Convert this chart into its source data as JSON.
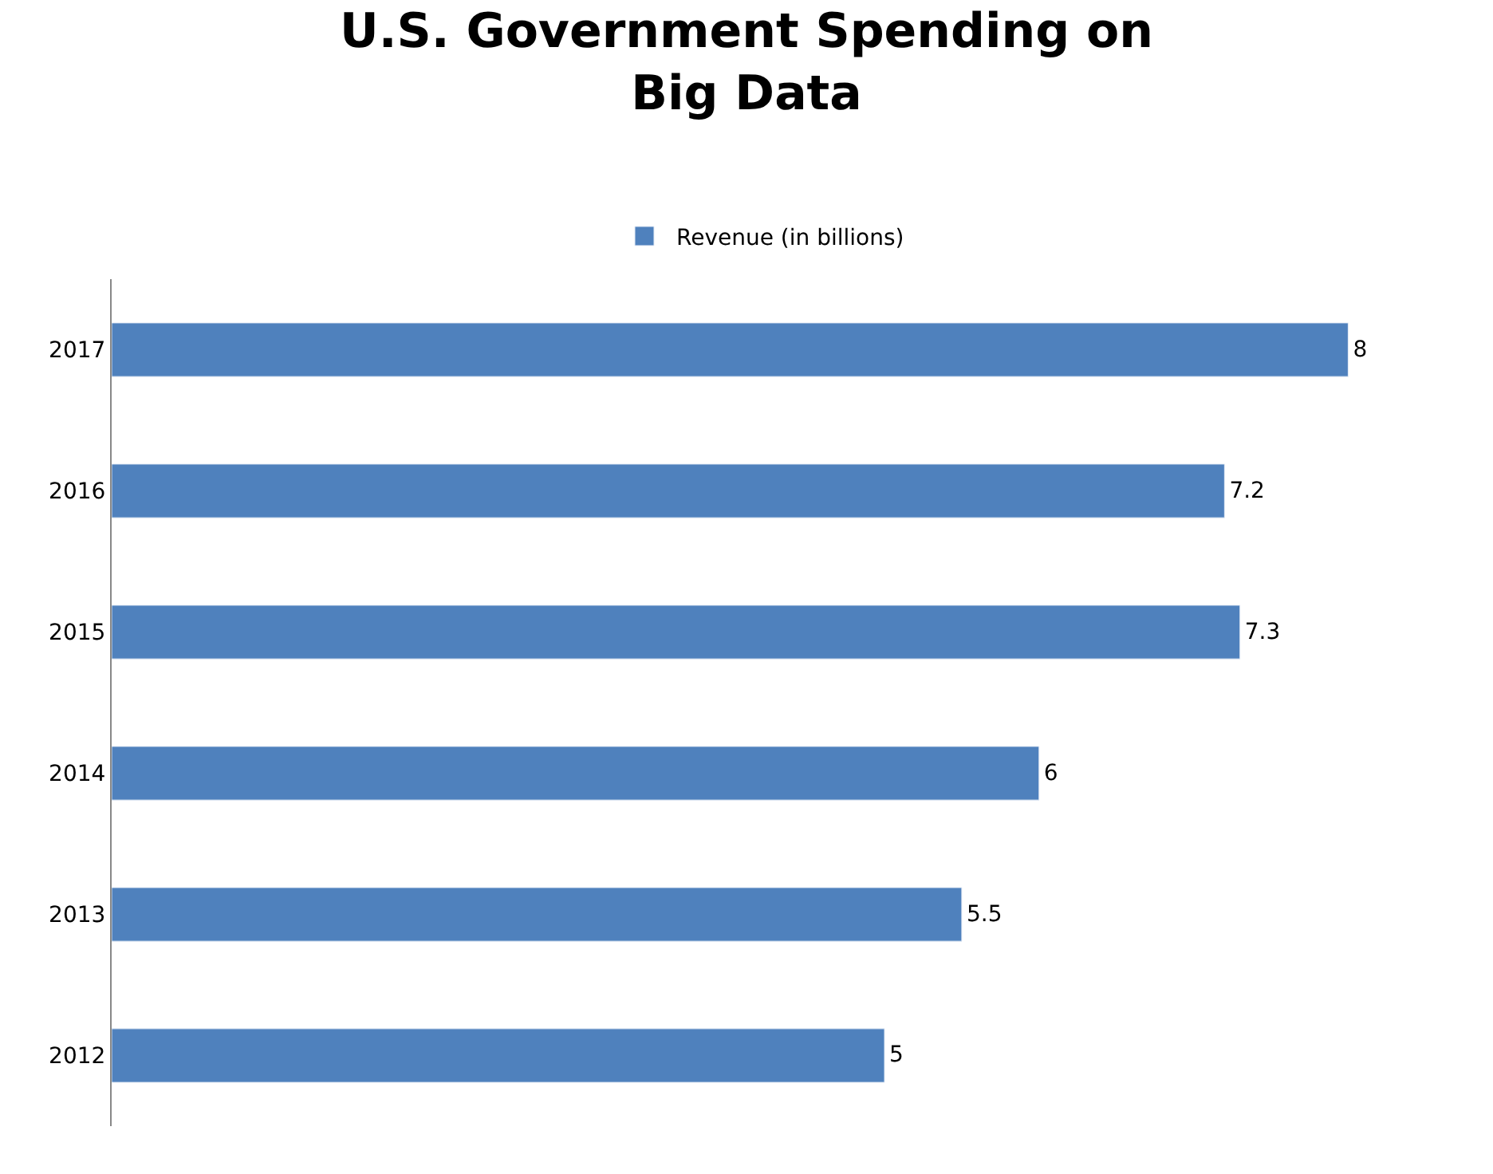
{
  "chart_data": {
    "type": "bar",
    "orientation": "horizontal",
    "title": "U.S. Government Spending on\nBig Data",
    "categories": [
      "2017",
      "2016",
      "2015",
      "2014",
      "2013",
      "2012"
    ],
    "series": [
      {
        "name": "Revenue (in billions)",
        "color": "#4f81bd",
        "values": [
          8,
          7.2,
          7.3,
          6,
          5.5,
          5
        ]
      }
    ],
    "data_labels": true,
    "legend": "top",
    "tick_labels": "y"
  }
}
